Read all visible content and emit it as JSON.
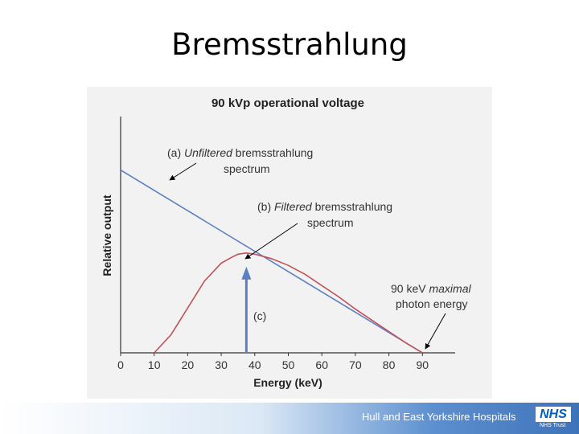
{
  "slide": {
    "title": "Bremsstrahlung"
  },
  "chart_data": {
    "type": "line",
    "title": "90 kVp operational voltage",
    "xlabel": "Energy (keV)",
    "ylabel": "Relative output",
    "xlim": [
      0,
      100
    ],
    "ylim": [
      0,
      100
    ],
    "xticks": [
      0,
      10,
      20,
      30,
      40,
      50,
      60,
      70,
      80,
      90
    ],
    "grid": false,
    "series": [
      {
        "label_prefix": "(a) ",
        "label_em": "Unfiltered",
        "label_rest": " bremsstrahlung",
        "label_line2": "spectrum",
        "color": "#5b7fbf",
        "x": [
          0,
          90
        ],
        "y": [
          81.5,
          0
        ]
      },
      {
        "label_prefix": "(b) ",
        "label_em": "Filtered",
        "label_rest": " bremsstrahlung",
        "label_line2": "spectrum",
        "color": "#c0505a",
        "x": [
          10,
          15,
          20,
          25,
          30,
          33,
          35,
          37.5,
          40,
          45,
          50,
          55,
          60,
          65,
          70,
          75,
          80,
          85,
          90
        ],
        "y": [
          0,
          8,
          20,
          32,
          40,
          42.5,
          44,
          44.5,
          44,
          42,
          39,
          35,
          30,
          25,
          19.5,
          14.5,
          9.5,
          4.5,
          0
        ]
      }
    ],
    "annotations": {
      "c": {
        "label": "(c)",
        "x": 37.5,
        "y": 37,
        "color": "#5b7fbf"
      },
      "max": {
        "label_line1_prefix": "90 keV ",
        "label_line1_em": "maximal",
        "label_line2": "photon energy",
        "x": 90,
        "y": 0
      }
    }
  },
  "footer": {
    "org": "Hull and East Yorkshire Hospitals",
    "nhs": "NHS",
    "trust": "NHS Trust"
  }
}
